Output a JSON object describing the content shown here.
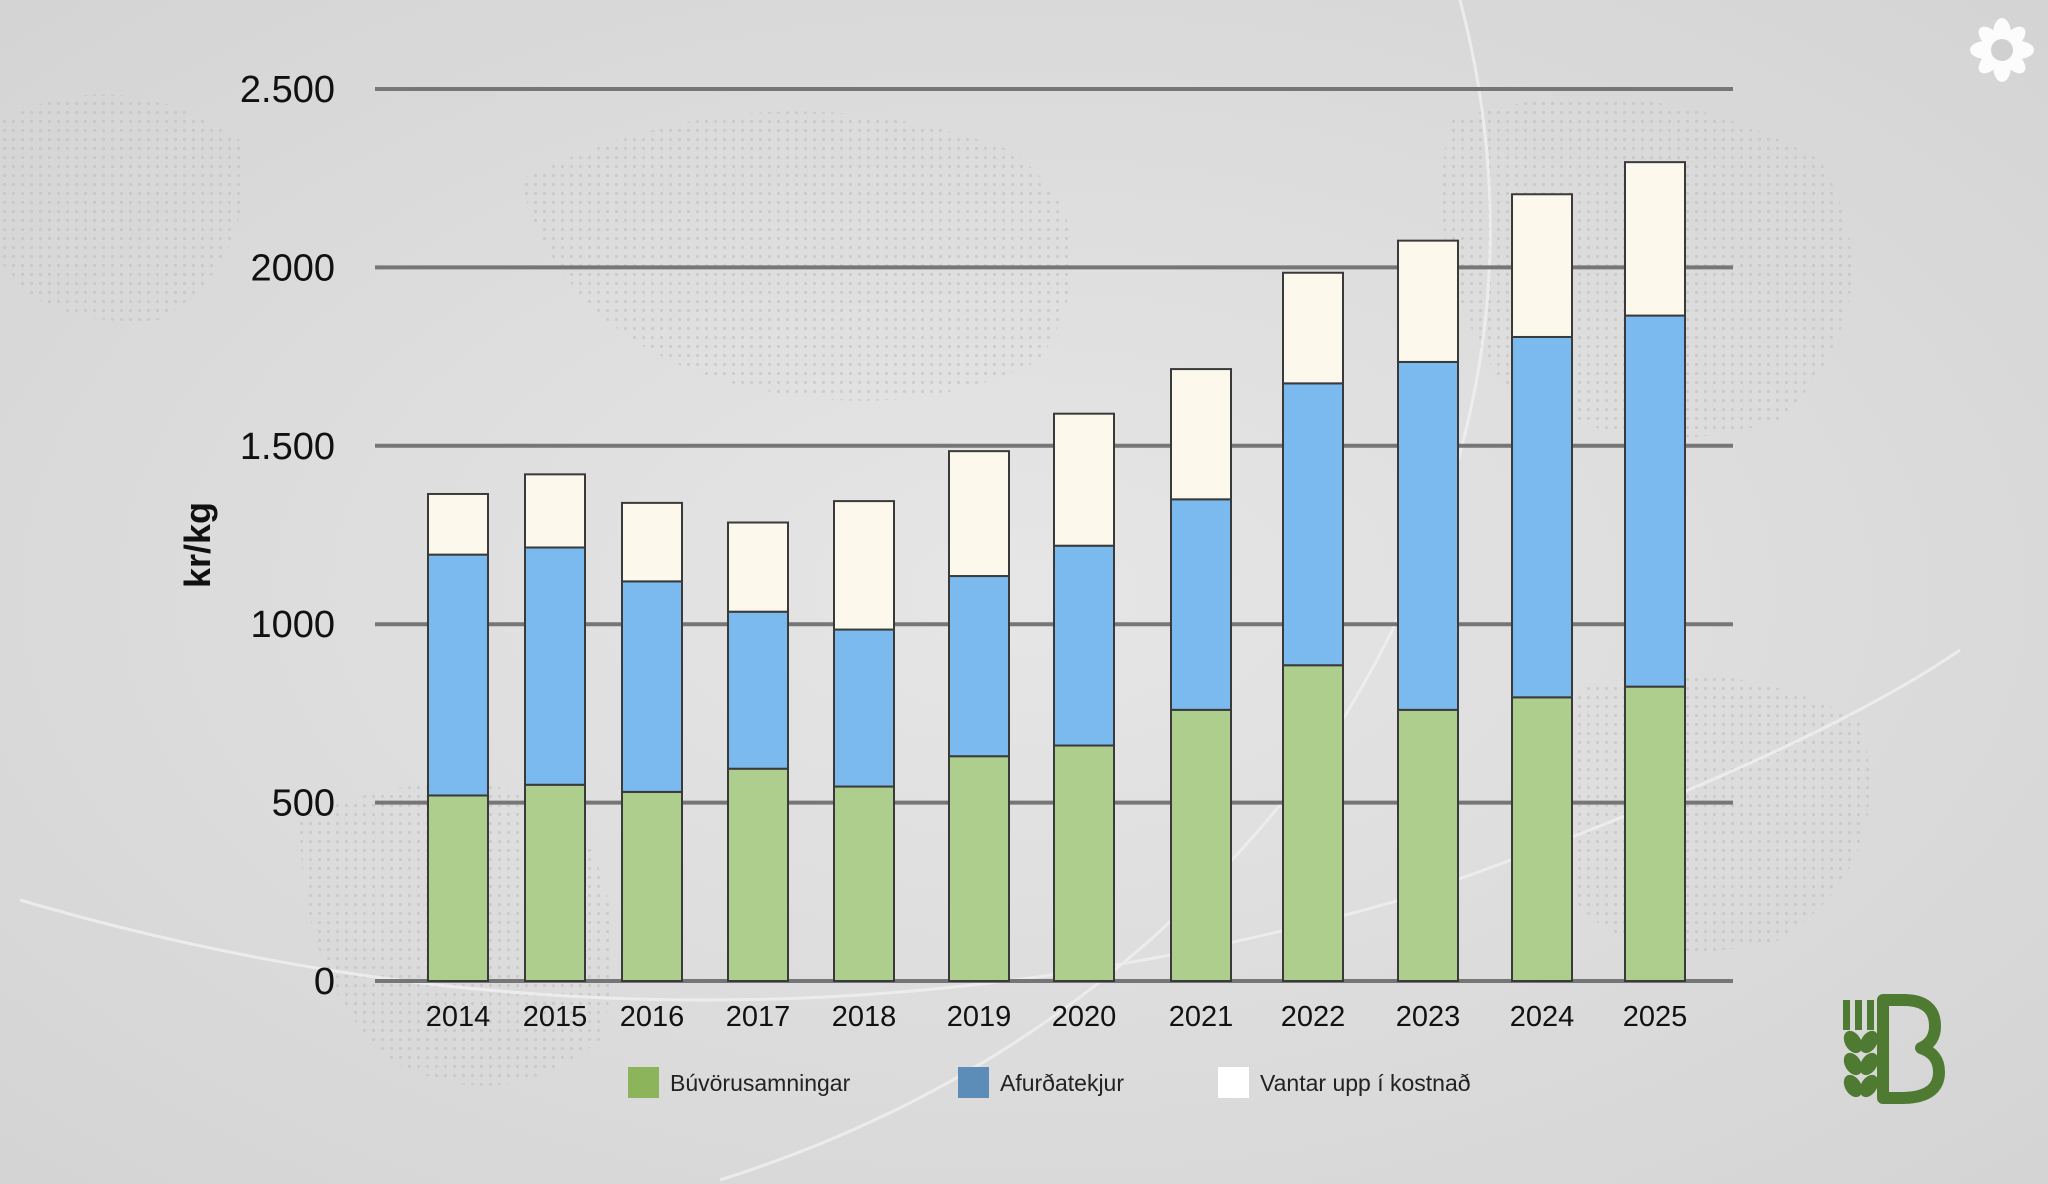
{
  "colors": {
    "background": "#dcdcdc",
    "gridline": "#767676",
    "bar_outline": "#3a3a3a",
    "legend_swatch_buvoru": "#8cb45a",
    "legend_swatch_afurda": "#5b8db8",
    "legend_swatch_vantar": "#ffffff",
    "logo_green": "#4f7a32"
  },
  "icons": {
    "top_right": "lotus-mandala-icon",
    "bottom_right": "wheat-b-logo-icon"
  },
  "chart_data": {
    "type": "bar",
    "stacked": true,
    "ylabel": "kr/kg",
    "xlabel": "",
    "ylim": [
      0,
      2500
    ],
    "yticks": [
      {
        "value": 0,
        "label": "0"
      },
      {
        "value": 500,
        "label": "500"
      },
      {
        "value": 1000,
        "label": "1000"
      },
      {
        "value": 1500,
        "label": "1.500"
      },
      {
        "value": 2000,
        "label": "2000"
      },
      {
        "value": 2500,
        "label": "2.500"
      }
    ],
    "grid": true,
    "legend_position": "bottom",
    "categories": [
      "2014",
      "2015",
      "2016",
      "2017",
      "2018",
      "2019",
      "2020",
      "2021",
      "2022",
      "2023",
      "2024",
      "2025"
    ],
    "series": [
      {
        "name": "Búvörusamningar",
        "color": "#aece8e",
        "values": [
          520,
          550,
          530,
          595,
          545,
          630,
          660,
          760,
          885,
          760,
          795,
          825
        ]
      },
      {
        "name": "Afurðatekjur",
        "color": "#7bbaee",
        "values": [
          675,
          665,
          590,
          440,
          440,
          505,
          560,
          590,
          790,
          975,
          1010,
          1040
        ]
      },
      {
        "name": "Vantar upp í kostnað",
        "color": "#fcf8ec",
        "values": [
          170,
          205,
          220,
          250,
          360,
          350,
          370,
          365,
          310,
          340,
          400,
          430
        ]
      }
    ]
  }
}
